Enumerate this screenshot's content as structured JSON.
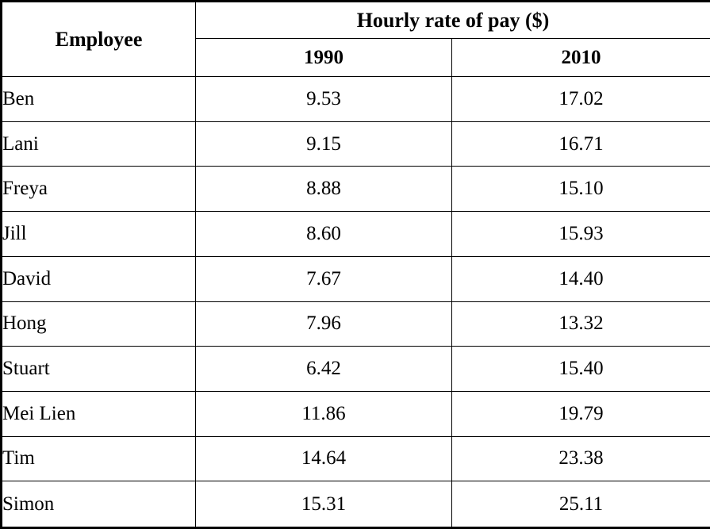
{
  "table": {
    "header": {
      "employee_label": "Employee",
      "group_label": "Hourly rate of pay ($)",
      "year_columns": [
        "1990",
        "2010"
      ]
    },
    "rows": [
      {
        "employee": "Ben",
        "rate_1990": "9.53",
        "rate_2010": "17.02"
      },
      {
        "employee": "Lani",
        "rate_1990": "9.15",
        "rate_2010": "16.71"
      },
      {
        "employee": "Freya",
        "rate_1990": "8.88",
        "rate_2010": "15.10"
      },
      {
        "employee": "Jill",
        "rate_1990": "8.60",
        "rate_2010": "15.93"
      },
      {
        "employee": "David",
        "rate_1990": "7.67",
        "rate_2010": "14.40"
      },
      {
        "employee": "Hong",
        "rate_1990": "7.96",
        "rate_2010": "13.32"
      },
      {
        "employee": "Stuart",
        "rate_1990": "6.42",
        "rate_2010": "15.40"
      },
      {
        "employee": "Mei Lien",
        "rate_1990": "11.86",
        "rate_2010": "19.79"
      },
      {
        "employee": "Tim",
        "rate_1990": "14.64",
        "rate_2010": "23.38"
      },
      {
        "employee": "Simon",
        "rate_1990": "15.31",
        "rate_2010": "25.11"
      }
    ]
  },
  "colors": {
    "border": "#000000",
    "background": "#ffffff",
    "text": "#000000"
  }
}
